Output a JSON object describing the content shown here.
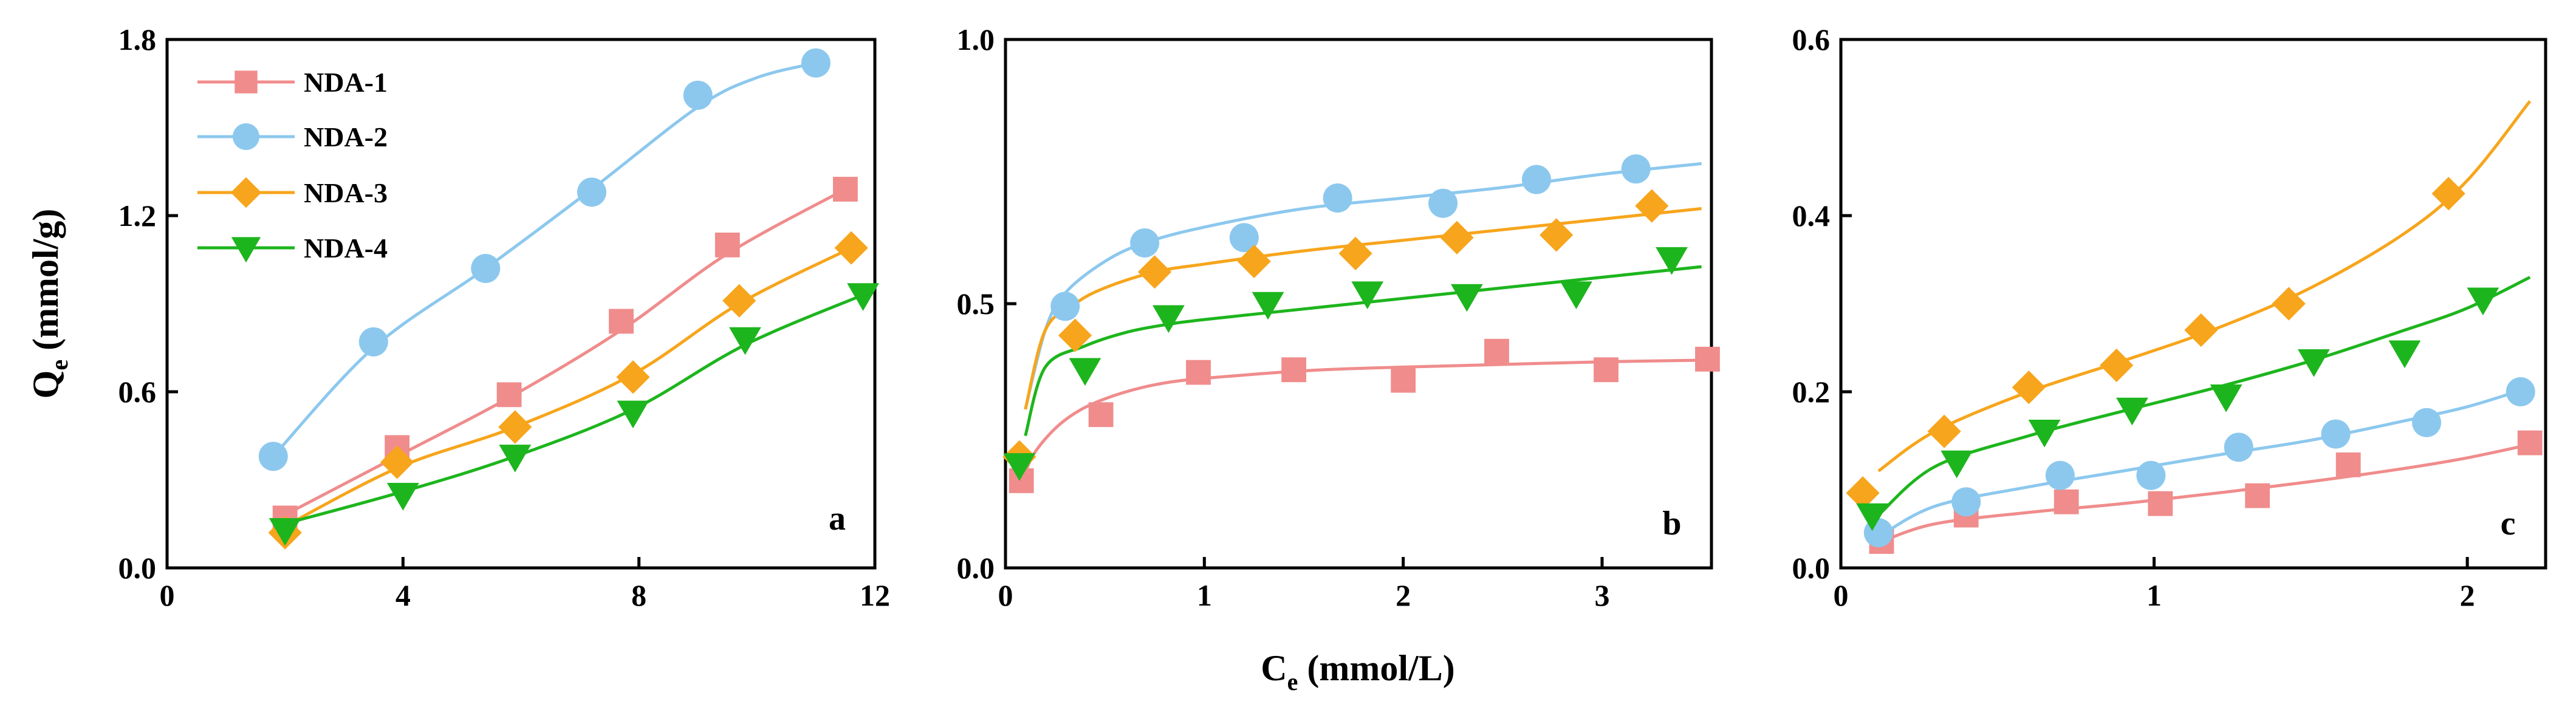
{
  "figure": {
    "ylabel_main": "Q",
    "ylabel_sub": "e",
    "ylabel_unit": " (mmol/g)",
    "xlabel_main": "C",
    "xlabel_sub": "e",
    "xlabel_unit": " (mmol/L)"
  },
  "legend": [
    {
      "name": "NDA-1",
      "color": "#F08C8C",
      "marker": "square"
    },
    {
      "name": "NDA-2",
      "color": "#8CC8EE",
      "marker": "circle"
    },
    {
      "name": "NDA-3",
      "color": "#F7A51C",
      "marker": "diamond"
    },
    {
      "name": "NDA-4",
      "color": "#1DB51D",
      "marker": "triangle-down"
    }
  ],
  "chart_data": [
    {
      "type": "scatter",
      "panel": "a",
      "xlim": [
        0,
        12
      ],
      "ylim": [
        0,
        1.8
      ],
      "xticks": [
        "0",
        "4",
        "8",
        "12"
      ],
      "yticks": [
        "0.0",
        "0.6",
        "1.2",
        "1.8"
      ],
      "xtick_values": [
        0,
        4,
        8,
        12
      ],
      "ytick_values": [
        0,
        0.6,
        1.2,
        1.8
      ],
      "series": [
        {
          "name": "NDA-1",
          "x": [
            2.0,
            3.9,
            5.8,
            7.7,
            9.5,
            11.5
          ],
          "y": [
            0.17,
            0.41,
            0.59,
            0.84,
            1.1,
            1.29
          ],
          "fit_x": [
            1.8,
            3.9,
            5.8,
            7.7,
            9.5,
            11.5
          ],
          "fit_y": [
            0.16,
            0.38,
            0.58,
            0.81,
            1.07,
            1.29
          ]
        },
        {
          "name": "NDA-2",
          "x": [
            1.8,
            3.5,
            5.4,
            7.2,
            9.0,
            11.0
          ],
          "y": [
            0.38,
            0.77,
            1.02,
            1.28,
            1.61,
            1.72
          ],
          "fit_x": [
            1.8,
            3.5,
            5.4,
            7.2,
            9.0,
            10.0,
            11.0
          ],
          "fit_y": [
            0.38,
            0.75,
            1.02,
            1.29,
            1.57,
            1.67,
            1.72
          ]
        },
        {
          "name": "NDA-3",
          "x": [
            2.0,
            3.9,
            5.9,
            7.9,
            9.7,
            11.6
          ],
          "y": [
            0.12,
            0.36,
            0.48,
            0.65,
            0.91,
            1.09
          ],
          "fit_x": [
            1.8,
            3.9,
            5.9,
            7.9,
            9.7,
            11.6
          ],
          "fit_y": [
            0.12,
            0.34,
            0.48,
            0.66,
            0.9,
            1.09
          ]
        },
        {
          "name": "NDA-4",
          "x": [
            2.0,
            4.0,
            5.9,
            7.9,
            9.8,
            11.8
          ],
          "y": [
            0.13,
            0.25,
            0.38,
            0.53,
            0.78,
            0.93
          ],
          "fit_x": [
            1.8,
            4.0,
            5.9,
            7.9,
            9.8,
            11.8
          ],
          "fit_y": [
            0.14,
            0.26,
            0.38,
            0.54,
            0.76,
            0.93
          ]
        }
      ]
    },
    {
      "type": "scatter",
      "panel": "b",
      "xlim": [
        0,
        3.55
      ],
      "ylim": [
        0,
        1.0
      ],
      "xticks": [
        "0",
        "1",
        "2",
        "3"
      ],
      "yticks": [
        "0.0",
        "0.5",
        "1.0"
      ],
      "xtick_values": [
        0,
        1,
        2,
        3
      ],
      "ytick_values": [
        0,
        0.5,
        1.0
      ],
      "series": [
        {
          "name": "NDA-1",
          "x": [
            0.08,
            0.48,
            0.97,
            1.45,
            2.0,
            2.47,
            3.02,
            3.53
          ],
          "y": [
            0.165,
            0.29,
            0.37,
            0.375,
            0.355,
            0.41,
            0.375,
            0.395
          ],
          "fit_x": [
            0.08,
            0.15,
            0.3,
            0.5,
            0.8,
            1.2,
            1.6,
            2.0,
            2.5,
            3.0,
            3.5
          ],
          "fit_y": [
            0.16,
            0.22,
            0.28,
            0.32,
            0.35,
            0.365,
            0.375,
            0.38,
            0.385,
            0.39,
            0.393
          ]
        },
        {
          "name": "NDA-2",
          "x": [
            0.3,
            0.7,
            1.2,
            1.67,
            2.2,
            2.67,
            3.17
          ],
          "y": [
            0.495,
            0.615,
            0.625,
            0.7,
            0.69,
            0.735,
            0.755
          ],
          "fit_x": [
            0.1,
            0.2,
            0.3,
            0.5,
            0.7,
            1.0,
            1.5,
            2.0,
            2.5,
            3.0,
            3.5
          ],
          "fit_y": [
            0.3,
            0.45,
            0.52,
            0.58,
            0.615,
            0.645,
            0.68,
            0.7,
            0.72,
            0.745,
            0.765
          ]
        },
        {
          "name": "NDA-3",
          "x": [
            0.07,
            0.35,
            0.75,
            1.25,
            1.76,
            2.27,
            2.77,
            3.25
          ],
          "y": [
            0.21,
            0.44,
            0.56,
            0.58,
            0.595,
            0.625,
            0.63,
            0.685
          ],
          "fit_x": [
            0.1,
            0.2,
            0.35,
            0.5,
            0.75,
            1.0,
            1.5,
            2.0,
            2.5,
            3.0,
            3.5
          ],
          "fit_y": [
            0.3,
            0.45,
            0.5,
            0.53,
            0.56,
            0.575,
            0.6,
            0.62,
            0.64,
            0.66,
            0.68
          ]
        },
        {
          "name": "NDA-4",
          "x": [
            0.07,
            0.4,
            0.82,
            1.32,
            1.82,
            2.32,
            2.87,
            3.35
          ],
          "y": [
            0.195,
            0.375,
            0.475,
            0.5,
            0.52,
            0.515,
            0.52,
            0.585
          ],
          "fit_x": [
            0.1,
            0.2,
            0.4,
            0.6,
            0.8,
            1.0,
            1.5,
            2.0,
            2.5,
            3.0,
            3.5
          ],
          "fit_y": [
            0.25,
            0.38,
            0.42,
            0.445,
            0.46,
            0.47,
            0.49,
            0.51,
            0.53,
            0.55,
            0.57
          ]
        }
      ]
    },
    {
      "type": "scatter",
      "panel": "c",
      "xlim": [
        0,
        2.25
      ],
      "ylim": [
        0,
        0.6
      ],
      "xticks": [
        "0",
        "1",
        "2"
      ],
      "yticks": [
        "0.0",
        "0.2",
        "0.4",
        "0.6"
      ],
      "xtick_values": [
        0,
        1,
        2
      ],
      "ytick_values": [
        0,
        0.2,
        0.4,
        0.6
      ],
      "series": [
        {
          "name": "NDA-1",
          "x": [
            0.13,
            0.4,
            0.72,
            1.02,
            1.33,
            1.62,
            2.2
          ],
          "y": [
            0.03,
            0.06,
            0.075,
            0.073,
            0.082,
            0.117,
            0.142
          ],
          "fit_x": [
            0.13,
            0.3,
            0.6,
            0.9,
            1.2,
            1.5,
            1.8,
            2.0,
            2.2
          ],
          "fit_y": [
            0.03,
            0.05,
            0.063,
            0.073,
            0.085,
            0.098,
            0.113,
            0.125,
            0.14
          ]
        },
        {
          "name": "NDA-2",
          "x": [
            0.12,
            0.4,
            0.7,
            0.99,
            1.27,
            1.58,
            1.87,
            2.17
          ],
          "y": [
            0.04,
            0.075,
            0.105,
            0.105,
            0.137,
            0.152,
            0.165,
            0.2
          ],
          "fit_x": [
            0.12,
            0.3,
            0.6,
            0.9,
            1.2,
            1.5,
            1.8,
            2.0,
            2.2
          ],
          "fit_y": [
            0.035,
            0.07,
            0.092,
            0.11,
            0.128,
            0.145,
            0.167,
            0.183,
            0.205
          ]
        },
        {
          "name": "NDA-3",
          "x": [
            0.07,
            0.33,
            0.6,
            0.88,
            1.15,
            1.43,
            1.94
          ],
          "y": [
            0.085,
            0.155,
            0.205,
            0.23,
            0.27,
            0.3,
            0.425
          ],
          "fit_x": [
            0.12,
            0.3,
            0.6,
            0.9,
            1.2,
            1.5,
            1.8,
            2.0,
            2.2
          ],
          "fit_y": [
            0.11,
            0.155,
            0.2,
            0.235,
            0.272,
            0.318,
            0.38,
            0.44,
            0.53
          ]
        },
        {
          "name": "NDA-4",
          "x": [
            0.1,
            0.37,
            0.65,
            0.93,
            1.23,
            1.51,
            1.8,
            2.05
          ],
          "y": [
            0.06,
            0.12,
            0.155,
            0.18,
            0.195,
            0.235,
            0.245,
            0.305
          ],
          "fit_x": [
            0.12,
            0.3,
            0.6,
            0.9,
            1.2,
            1.5,
            1.8,
            2.0,
            2.2
          ],
          "fit_y": [
            0.06,
            0.115,
            0.15,
            0.178,
            0.205,
            0.235,
            0.27,
            0.295,
            0.33
          ]
        }
      ]
    }
  ]
}
